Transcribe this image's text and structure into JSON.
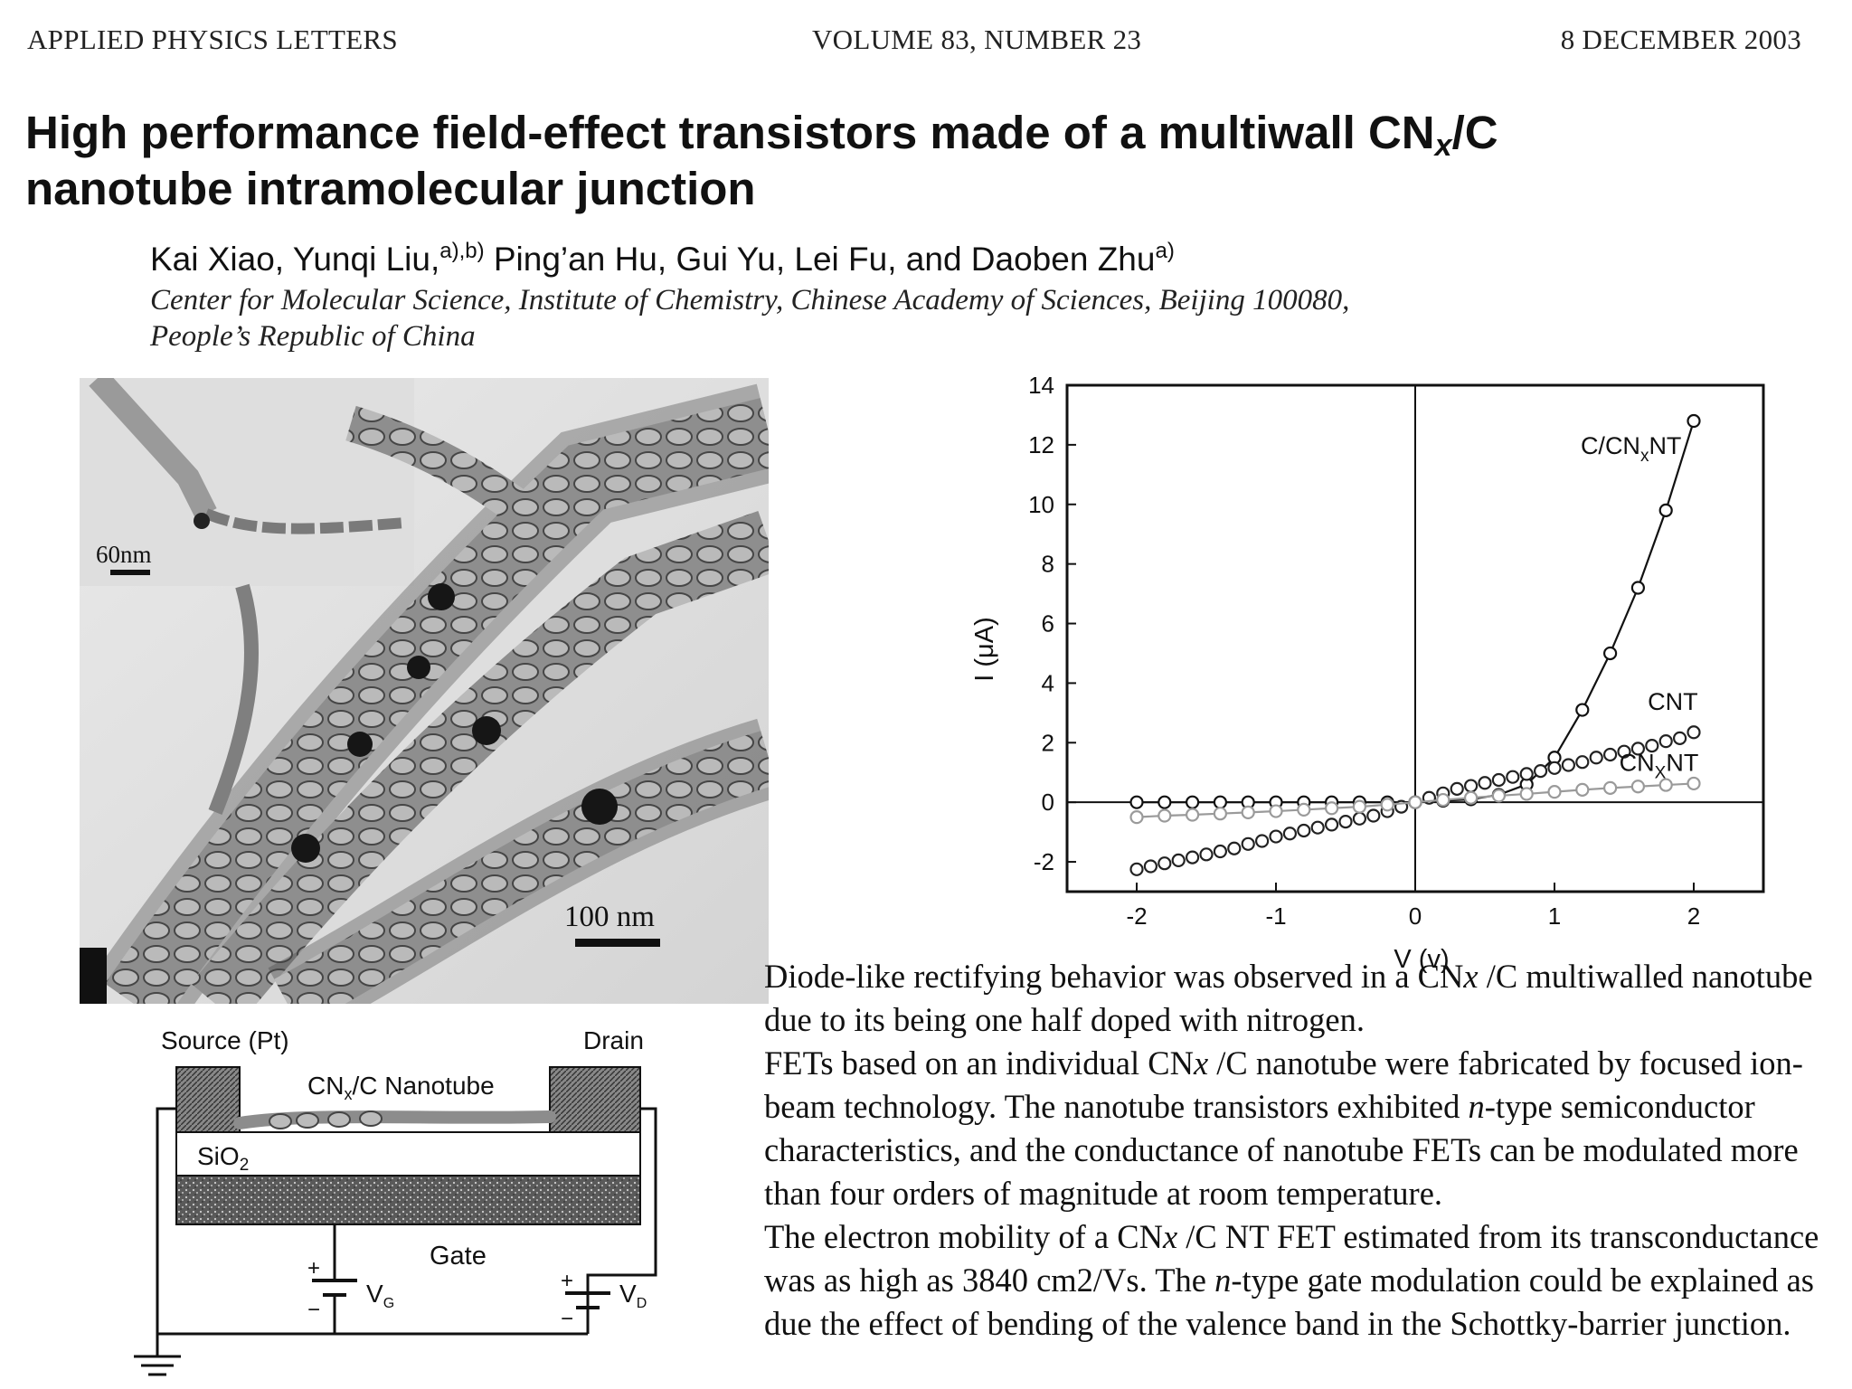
{
  "header": {
    "journal": "APPLIED PHYSICS LETTERS",
    "volume": "VOLUME 83, NUMBER 23",
    "date": "8 DECEMBER 2003"
  },
  "article": {
    "title_part1": "High performance field-effect transistors made of a multiwall CN",
    "title_sub": "x",
    "title_part2": "/C",
    "title_line2": "nanotube intramolecular junction",
    "authors_part1": "Kai Xiao, Yunqi Liu,",
    "authors_sup1": "a),b)",
    "authors_part2": " Ping’an Hu, Gui Yu, Lei Fu, and Daoben Zhu",
    "authors_sup2": "a)",
    "affiliation_line1": "Center for Molecular Science, Institute of Chemistry, Chinese Academy of Sciences, Beijing 100080,",
    "affiliation_line2": "People’s Republic of China"
  },
  "tem_figure": {
    "inset_scale_label": "60nm",
    "main_scale_label": "100 nm"
  },
  "schematic": {
    "source_label": "Source (Pt)",
    "drain_label": "Drain",
    "nanotube_label_a": "CN",
    "nanotube_label_sub": "x",
    "nanotube_label_b": "/C Nanotube",
    "oxide_label_a": "SiO",
    "oxide_label_sub": "2",
    "gate_label": "Gate",
    "vg_label_a": "V",
    "vg_label_sub": "G",
    "vd_label_a": "V",
    "vd_label_sub": "D",
    "plus": "+",
    "minus": "−"
  },
  "chart_data": {
    "type": "scatter",
    "title": "",
    "xlabel": "V (v)",
    "ylabel": "I (μA)",
    "xlim": [
      -2.5,
      2.5
    ],
    "ylim": [
      -3,
      14
    ],
    "x_ticks": [
      -2,
      -1,
      0,
      1,
      2
    ],
    "y_ticks": [
      -2,
      0,
      2,
      4,
      6,
      8,
      10,
      12,
      14
    ],
    "grid": false,
    "axis_lines_at_zero": true,
    "series": [
      {
        "name": "C/CNxNT",
        "label_main": "C/CN",
        "label_sub": "x",
        "label_tail": "NT",
        "label_x": 1.55,
        "label_y": 11.7,
        "marker": "open-circle",
        "line": "solid",
        "color": "#111111",
        "x": [
          -2.0,
          -1.8,
          -1.6,
          -1.4,
          -1.2,
          -1.0,
          -0.8,
          -0.6,
          -0.4,
          -0.2,
          0.0,
          0.2,
          0.4,
          0.6,
          0.8,
          1.0,
          1.2,
          1.4,
          1.6,
          1.8,
          2.0
        ],
        "y": [
          0.0,
          0.0,
          0.0,
          0.0,
          0.0,
          0.0,
          0.0,
          0.0,
          0.0,
          0.0,
          0.0,
          0.05,
          0.1,
          0.25,
          0.6,
          1.5,
          3.1,
          5.0,
          7.2,
          9.8,
          12.8
        ]
      },
      {
        "name": "CNT",
        "label_main": "CNT",
        "label_sub": "",
        "label_tail": "",
        "label_x": 1.85,
        "label_y": 3.1,
        "marker": "open-circle",
        "line": "none",
        "color": "#222222",
        "x": [
          -2.0,
          -1.9,
          -1.8,
          -1.7,
          -1.6,
          -1.5,
          -1.4,
          -1.3,
          -1.2,
          -1.1,
          -1.0,
          -0.9,
          -0.8,
          -0.7,
          -0.6,
          -0.5,
          -0.4,
          -0.3,
          -0.2,
          -0.1,
          0.0,
          0.1,
          0.2,
          0.3,
          0.4,
          0.5,
          0.6,
          0.7,
          0.8,
          0.9,
          1.0,
          1.1,
          1.2,
          1.3,
          1.4,
          1.5,
          1.6,
          1.7,
          1.8,
          1.9,
          2.0
        ],
        "y": [
          -2.25,
          -2.15,
          -2.05,
          -1.95,
          -1.85,
          -1.75,
          -1.65,
          -1.55,
          -1.4,
          -1.3,
          -1.15,
          -1.05,
          -0.95,
          -0.85,
          -0.75,
          -0.65,
          -0.55,
          -0.45,
          -0.3,
          -0.15,
          0.0,
          0.15,
          0.3,
          0.45,
          0.55,
          0.65,
          0.75,
          0.85,
          0.95,
          1.05,
          1.15,
          1.25,
          1.35,
          1.5,
          1.6,
          1.7,
          1.8,
          1.9,
          2.05,
          2.15,
          2.35
        ]
      },
      {
        "name": "CNxNT",
        "label_main": "CN",
        "label_sub": "X",
        "label_tail": "NT",
        "label_x": 1.75,
        "label_y": 1.05,
        "marker": "open-circle",
        "line": "solid",
        "color": "#9a9a9a",
        "x": [
          -2.0,
          -1.8,
          -1.6,
          -1.4,
          -1.2,
          -1.0,
          -0.8,
          -0.6,
          -0.4,
          -0.2,
          0.0,
          0.2,
          0.4,
          0.6,
          0.8,
          1.0,
          1.2,
          1.4,
          1.6,
          1.8,
          2.0
        ],
        "y": [
          -0.5,
          -0.45,
          -0.42,
          -0.38,
          -0.34,
          -0.3,
          -0.25,
          -0.2,
          -0.15,
          -0.08,
          0.0,
          0.08,
          0.15,
          0.22,
          0.28,
          0.35,
          0.42,
          0.48,
          0.53,
          0.58,
          0.63
        ]
      }
    ]
  },
  "abstract": {
    "p1_a": "Diode-like rectifying behavior was observed in a CN",
    "p1_x": "x",
    "p1_b": " /C multiwalled nanotube due to its being one half doped with nitrogen.",
    "p2_a": "FETs based on an individual CN",
    "p2_x": "x",
    "p2_b": " /C nanotube were fabricated by focused ion-beam technology. The nanotube transistors exhibited ",
    "p2_n": "n",
    "p2_c": "-type semiconductor characteristics, and the conductance of nanotube FETs can be modulated more than four orders of magnitude at room temperature.",
    "p3_a": "The electron mobility of a CN",
    "p3_x": "x",
    "p3_b": " /C NT FET estimated from its transconductance was as high as 3840 cm2/Vs. The ",
    "p3_n": "n",
    "p3_c": "-type gate modulation could be explained as due the effect of bending of the valence band in the Schottky-barrier junction."
  }
}
